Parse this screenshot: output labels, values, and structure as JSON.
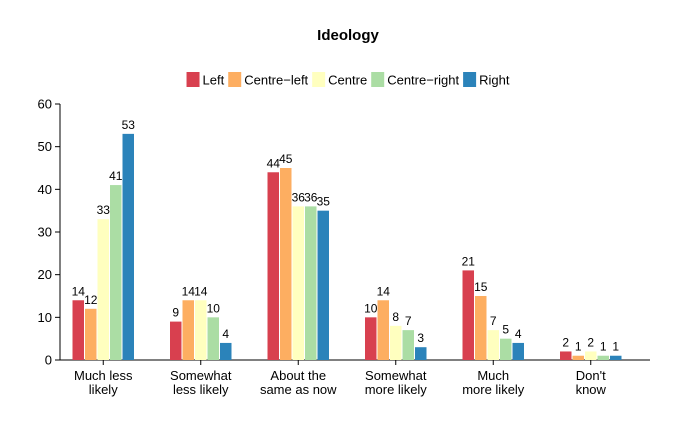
{
  "chart_data": {
    "type": "bar",
    "title": "Ideology",
    "xlabel": "",
    "ylabel": "",
    "ylim": [
      0,
      60
    ],
    "yticks": [
      "0",
      "10",
      "20",
      "30",
      "40",
      "50",
      "60"
    ],
    "grid": false,
    "legend_position": "top",
    "categories": [
      [
        "Much less",
        "likely"
      ],
      [
        "Somewhat",
        "less likely"
      ],
      [
        "About the",
        "same as now"
      ],
      [
        "Somewhat",
        "more likely"
      ],
      [
        "Much",
        "more likely"
      ],
      [
        "Don't",
        "know"
      ]
    ],
    "series": [
      {
        "name": "Left",
        "color": "#D8404F",
        "values": [
          14,
          9,
          44,
          10,
          21,
          2
        ]
      },
      {
        "name": "Centre−left",
        "color": "#FDAE61",
        "values": [
          12,
          14,
          45,
          14,
          15,
          1
        ]
      },
      {
        "name": "Centre",
        "color": "#FFFFBF",
        "values": [
          33,
          14,
          36,
          8,
          7,
          2
        ]
      },
      {
        "name": "Centre−right",
        "color": "#ABDDA4",
        "values": [
          41,
          10,
          36,
          7,
          5,
          1
        ]
      },
      {
        "name": "Right",
        "color": "#2B83BA",
        "values": [
          53,
          4,
          35,
          3,
          4,
          1
        ]
      }
    ]
  }
}
